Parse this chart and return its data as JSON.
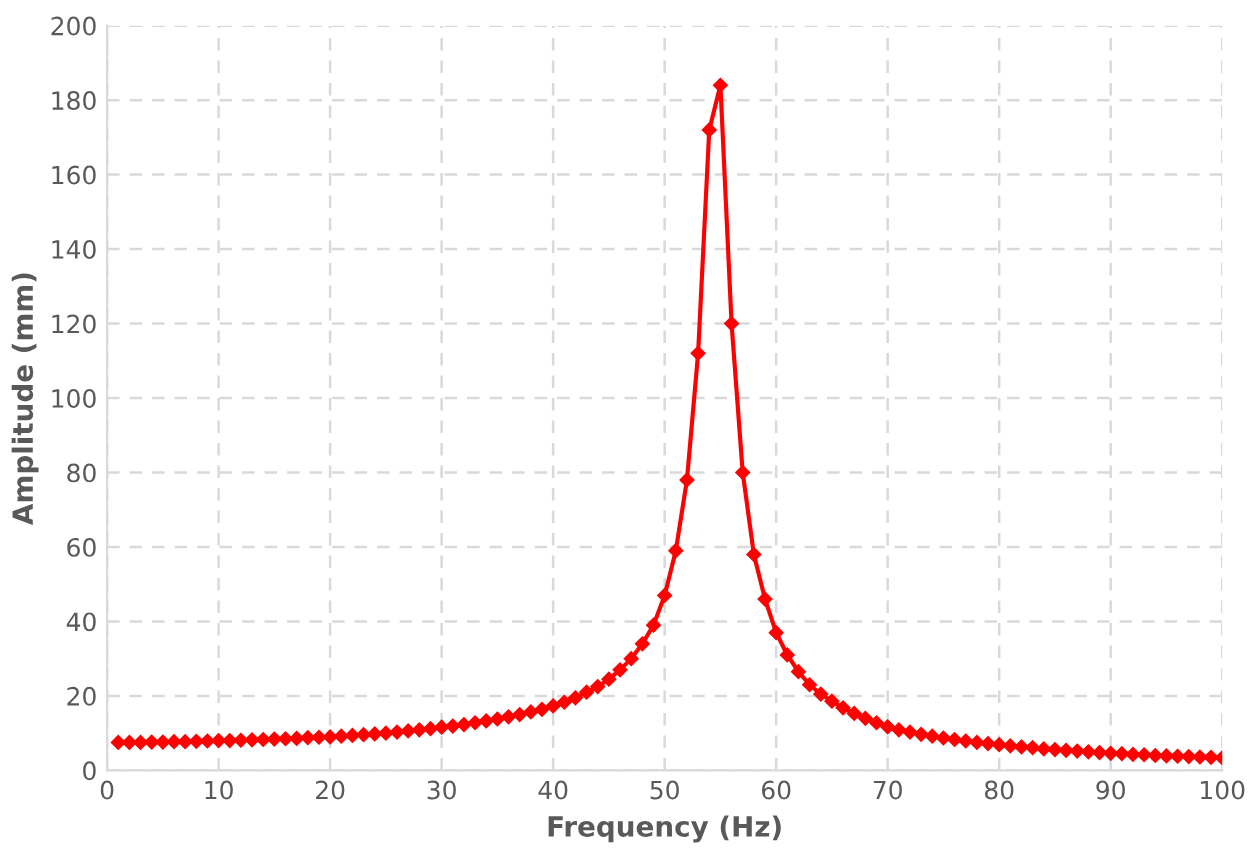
{
  "chart_data": {
    "type": "line",
    "xlabel": "Frequency (Hz)",
    "ylabel": "Amplitude (mm)",
    "x": [
      1,
      2,
      3,
      4,
      5,
      6,
      7,
      8,
      9,
      10,
      11,
      12,
      13,
      14,
      15,
      16,
      17,
      18,
      19,
      20,
      21,
      22,
      23,
      24,
      25,
      26,
      27,
      28,
      29,
      30,
      31,
      32,
      33,
      34,
      35,
      36,
      37,
      38,
      39,
      40,
      41,
      42,
      43,
      44,
      45,
      46,
      47,
      48,
      49,
      50,
      51,
      52,
      53,
      54,
      55,
      56,
      57,
      58,
      59,
      60,
      61,
      62,
      63,
      64,
      65,
      66,
      67,
      68,
      69,
      70,
      71,
      72,
      73,
      74,
      75,
      76,
      77,
      78,
      79,
      80,
      81,
      82,
      83,
      84,
      85,
      86,
      87,
      88,
      89,
      90,
      91,
      92,
      93,
      94,
      95,
      96,
      97,
      98,
      99,
      100
    ],
    "series": [
      {
        "color": "#ff0000",
        "values": [
          7.5,
          7.5,
          7.5,
          7.6,
          7.6,
          7.7,
          7.7,
          7.8,
          7.9,
          8,
          8,
          8.1,
          8.2,
          8.3,
          8.4,
          8.5,
          8.6,
          8.8,
          8.9,
          9,
          9.2,
          9.4,
          9.6,
          9.8,
          10,
          10.3,
          10.6,
          10.9,
          11.2,
          11.6,
          11.9,
          12.3,
          12.8,
          13.3,
          13.8,
          14.4,
          15,
          15.7,
          16.4,
          17.3,
          18.3,
          19.5,
          21,
          22.5,
          24.5,
          27,
          30,
          34,
          39,
          47,
          59,
          78,
          112,
          172,
          184,
          120,
          80,
          58,
          46,
          37,
          31,
          26.5,
          23,
          20.5,
          18.6,
          16.8,
          15.3,
          14,
          12.8,
          11.7,
          10.9,
          10.3,
          9.7,
          9.2,
          8.7,
          8.3,
          7.9,
          7.5,
          7.2,
          6.9,
          6.6,
          6.3,
          6.1,
          5.8,
          5.6,
          5.4,
          5.2,
          5,
          4.8,
          4.6,
          4.5,
          4.3,
          4.2,
          4,
          3.9,
          3.8,
          3.7,
          3.6,
          3.5,
          3.4
        ]
      }
    ],
    "xlim": [
      0,
      100
    ],
    "xticks": [
      0,
      10,
      20,
      30,
      40,
      50,
      60,
      70,
      80,
      90,
      100
    ],
    "ylim": [
      0,
      200
    ],
    "yticks": [
      0,
      20,
      40,
      60,
      80,
      100,
      120,
      140,
      160,
      180,
      200
    ],
    "grid": true,
    "marker": "diamond",
    "line_style": "solid"
  }
}
